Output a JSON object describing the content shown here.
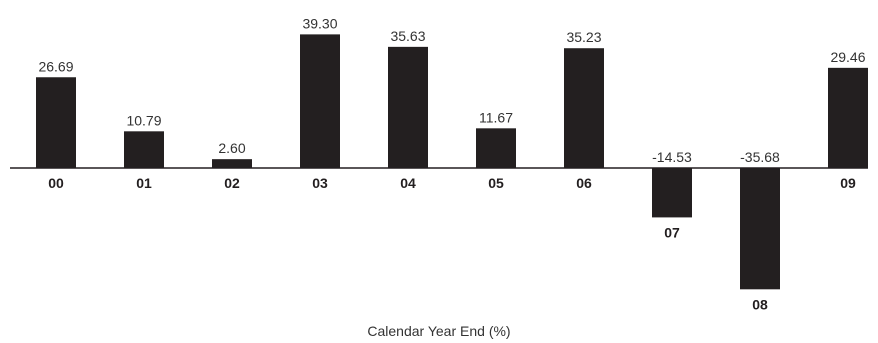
{
  "chart_data": {
    "type": "bar",
    "categories": [
      "00",
      "01",
      "02",
      "03",
      "04",
      "05",
      "06",
      "07",
      "08",
      "09"
    ],
    "values": [
      26.69,
      10.79,
      2.6,
      39.3,
      35.63,
      11.67,
      35.23,
      -14.53,
      -35.68,
      29.46
    ],
    "value_labels": [
      "26.69",
      "10.79",
      "2.60",
      "39.30",
      "35.63",
      "11.67",
      "35.23",
      "-14.53",
      "-35.68",
      "29.46"
    ],
    "title": "",
    "xlabel": "Calendar Year End (%)",
    "ylabel": "",
    "ylim": [
      -35.68,
      39.3
    ],
    "grid": false,
    "colors": {
      "bar": "#231f20"
    }
  }
}
